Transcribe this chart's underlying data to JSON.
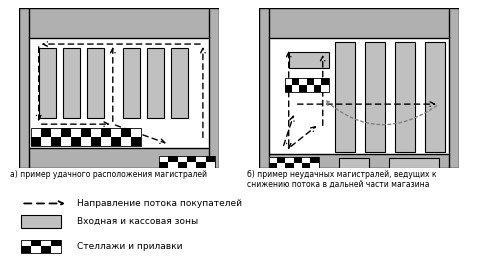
{
  "bg_color": "#ffffff",
  "gray_color": "#c0c0c0",
  "arrow_color": "#000000",
  "title_a": "а) пример удачного расположения магистралей",
  "title_b": "б) пример неудачных магистралей, ведущих к\nснижению потока в дальней части магазина",
  "legend_items": [
    "Направление потока покупателей",
    "Входная и кассовая зоны",
    "Стеллажи и прилавки"
  ]
}
